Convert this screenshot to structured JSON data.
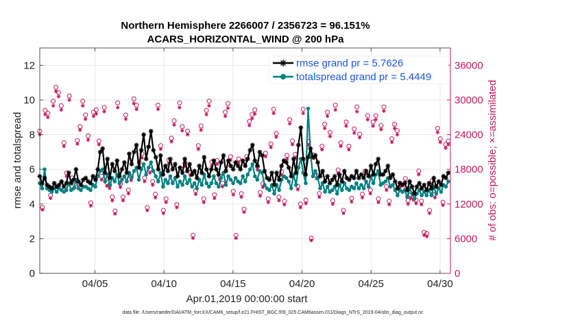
{
  "chart_data": {
    "type": "line",
    "title_line1": "Northern Hemisphere 2266007 / 2356723 = 96.151%",
    "title_line2": "ACARS_HORIZONTAL_WIND @ 200 hPa",
    "xlabel": "Apr.01,2019 00:00:00 start",
    "ylabel": "rmse and totalspread",
    "ylabel_right": "# of obs: o=possible; ×=assimilated",
    "footnote": "data file: /Users/raeder/DAI/ATM_forcXX/CAM6_setup/f.e21.FHIST_BGC.f09_025.CAM6assim.011/Diags_NTrS_2019-04/obs_diag_output.nc",
    "xlim": [
      1,
      30.75
    ],
    "ylim": [
      0,
      13
    ],
    "ylim_right": [
      0,
      39000
    ],
    "x_ticks": [
      5,
      10,
      15,
      20,
      25,
      30
    ],
    "x_tick_labels": [
      "04/05",
      "04/10",
      "04/15",
      "04/20",
      "04/25",
      "04/30"
    ],
    "y_ticks": [
      0,
      2,
      4,
      6,
      8,
      10,
      12
    ],
    "y_tick_labels": [
      "0",
      "2",
      "4",
      "6",
      "8",
      "10",
      "12"
    ],
    "y_right_ticks": [
      0,
      6000,
      12000,
      18000,
      24000,
      30000,
      36000
    ],
    "y_right_tick_labels": [
      "0",
      "6000",
      "12000",
      "18000",
      "24000",
      "30000",
      "36000"
    ],
    "grid": true,
    "legend_position": "top-right",
    "series": [
      {
        "name": "rmse",
        "legend": "rmse grand pr = 5.7626",
        "color": "#000000",
        "marker": "star",
        "values": [
          5.6,
          5.2,
          5.5,
          5.1,
          5.0,
          4.9,
          5.2,
          5.0,
          5.1,
          5.3,
          5.0,
          5.2,
          5.8,
          5.2,
          5.4,
          6.0,
          5.3,
          5.1,
          5.4,
          5.5,
          5.3,
          5.2,
          5.6,
          5.4,
          6.0,
          7.0,
          7.2,
          5.8,
          6.6,
          5.5,
          6.3,
          5.9,
          6.5,
          5.6,
          6.0,
          6.4,
          5.8,
          6.9,
          6.3,
          7.0,
          7.4,
          6.1,
          7.1,
          8.0,
          6.6,
          7.3,
          8.2,
          7.1,
          6.7,
          6.0,
          6.8,
          5.7,
          6.2,
          5.9,
          6.6,
          6.0,
          6.3,
          5.6,
          6.1,
          5.8,
          6.6,
          5.9,
          6.3,
          5.7,
          5.9,
          5.5,
          6.2,
          5.8,
          6.7,
          6.0,
          5.6,
          6.0,
          6.5,
          6.0,
          5.7,
          6.4,
          6.8,
          5.9,
          6.5,
          6.2,
          6.0,
          6.4,
          6.2,
          6.0,
          6.5,
          6.2,
          6.6,
          7.1,
          7.4,
          6.5,
          6.2,
          7.0,
          6.8,
          5.9,
          5.5,
          5.4,
          5.8,
          5.1,
          5.8,
          5.4,
          6.2,
          6.5,
          6.4,
          6.1,
          5.6,
          6.6,
          5.8,
          7.4,
          8.4,
          6.6,
          5.7,
          6.7,
          7.2,
          6.7,
          6.8,
          6.4,
          5.6,
          5.9,
          5.3,
          5.6,
          5.2,
          5.4,
          5.6,
          5.1,
          5.7,
          5.3,
          5.9,
          5.5,
          5.4,
          5.6,
          5.5,
          5.9,
          5.5,
          5.7,
          5.5,
          5.9,
          5.6,
          6.2,
          5.7,
          6.3,
          6.6,
          5.7,
          5.7,
          5.9,
          6.2,
          5.5,
          5.7,
          5.3,
          4.9,
          5.2,
          5.1,
          5.2,
          4.8,
          5.3,
          5.0,
          4.6,
          5.0,
          5.2,
          4.9,
          5.1,
          4.8,
          5.2,
          4.9,
          5.5,
          5.0,
          5.3,
          5.1,
          5.6,
          5.5,
          5.8
        ]
      },
      {
        "name": "totalspread",
        "legend": "totalspread grand pr = 5.4449",
        "color": "#008080",
        "marker": "circle",
        "values": [
          5.2,
          4.9,
          6.0,
          4.9,
          4.8,
          4.7,
          4.9,
          4.7,
          4.9,
          4.8,
          4.7,
          4.8,
          5.2,
          4.8,
          4.9,
          5.4,
          4.9,
          4.8,
          5.0,
          5.0,
          4.9,
          4.8,
          5.1,
          5.0,
          5.6,
          5.9,
          6.0,
          5.3,
          5.7,
          5.1,
          5.5,
          5.3,
          5.7,
          5.2,
          5.4,
          5.6,
          5.3,
          5.8,
          5.5,
          5.9,
          6.1,
          5.4,
          6.0,
          6.3,
          5.7,
          6.1,
          6.4,
          5.9,
          5.6,
          5.3,
          5.8,
          5.0,
          5.4,
          5.2,
          5.6,
          5.2,
          5.5,
          5.0,
          5.3,
          5.1,
          5.6,
          5.2,
          5.4,
          5.0,
          5.2,
          4.9,
          5.4,
          5.1,
          5.7,
          5.2,
          5.0,
          5.2,
          5.6,
          5.2,
          5.0,
          5.5,
          5.8,
          5.1,
          5.6,
          5.4,
          5.2,
          5.5,
          5.3,
          5.2,
          5.6,
          5.3,
          5.7,
          6.0,
          6.3,
          5.6,
          5.4,
          5.9,
          5.8,
          5.1,
          4.9,
          4.8,
          5.1,
          4.6,
          5.1,
          4.8,
          5.4,
          5.6,
          5.5,
          5.3,
          4.9,
          5.7,
          5.1,
          6.1,
          6.6,
          5.8,
          5.2,
          9.5,
          6.9,
          5.6,
          5.9,
          5.5,
          4.9,
          5.2,
          4.7,
          5.0,
          4.7,
          4.8,
          5.0,
          4.6,
          5.1,
          4.8,
          5.2,
          4.9,
          4.8,
          5.0,
          4.9,
          5.2,
          4.9,
          5.1,
          4.9,
          5.3,
          5.0,
          5.6,
          5.2,
          5.7,
          5.9,
          5.1,
          5.2,
          5.3,
          5.5,
          5.0,
          5.1,
          4.8,
          4.5,
          4.8,
          4.7,
          4.8,
          4.4,
          4.9,
          4.6,
          4.3,
          4.6,
          4.8,
          4.5,
          4.7,
          4.5,
          4.8,
          4.5,
          5.0,
          4.6,
          4.9,
          4.7,
          5.1,
          5.0,
          5.3
        ]
      }
    ],
    "obs_possible": [
      24600,
      11400,
      28200,
      27700,
      13500,
      29800,
      32200,
      31300,
      29000,
      22600,
      17400,
      30700,
      16500,
      15400,
      23000,
      25400,
      29800,
      27400,
      23800,
      12200,
      27900,
      28300,
      22900,
      16800,
      28700,
      15700,
      15300,
      13200,
      10800,
      29500,
      15500,
      13200,
      27400,
      14400,
      16800,
      30200,
      29100,
      19200,
      20700,
      16500,
      11400,
      18000,
      15900,
      13700,
      29100,
      22100,
      10900,
      12900,
      19600,
      23400,
      26400,
      11900,
      29500,
      25400,
      19100,
      24600,
      17500,
      6600,
      14300,
      22100,
      25500,
      12900,
      28200,
      29800,
      19300,
      13600,
      19500,
      16800,
      15600,
      27900,
      29400,
      20200,
      14200,
      6600,
      19800,
      13800,
      11100,
      20200,
      26300,
      27500,
      28300,
      18500,
      14000,
      15500,
      20800,
      12900,
      22400,
      28400,
      24200,
      13200,
      17600,
      12500,
      20400,
      26600,
      22900,
      20600,
      15100,
      12000,
      28400,
      12700,
      22800,
      6100,
      20500,
      17000,
      13800,
      22000,
      25800,
      27900,
      24400,
      12600,
      29100,
      17900,
      22600,
      10900,
      26200,
      22000,
      13000,
      25000,
      28800,
      24100,
      13700,
      17700,
      27300,
      14400,
      26200,
      27300,
      12900,
      25600,
      28800,
      15000,
      12500,
      23300,
      25800,
      24700,
      15600,
      14700,
      16400,
      12600,
      13600,
      13300,
      12700,
      17700,
      12500,
      7100,
      6900,
      10900,
      16000,
      13700,
      25100,
      23300,
      12300,
      22300,
      22900
    ],
    "obs_assimilated": [
      24000,
      11000,
      27500,
      27000,
      13000,
      29000,
      31500,
      30600,
      28300,
      22000,
      16800,
      30000,
      16000,
      14800,
      22400,
      24800,
      29000,
      26700,
      23100,
      11700,
      27200,
      27600,
      22300,
      16200,
      28000,
      15100,
      14700,
      12600,
      10300,
      28700,
      14900,
      12600,
      26700,
      13800,
      16100,
      29400,
      28400,
      18600,
      20000,
      15900,
      10900,
      17400,
      15300,
      13100,
      28400,
      21500,
      10400,
      12300,
      19000,
      22800,
      25700,
      11400,
      28700,
      24700,
      18500,
      24000,
      16900,
      6100,
      13700,
      21500,
      24800,
      12300,
      27500,
      29000,
      18600,
      13000,
      18900,
      16200,
      15000,
      27200,
      28600,
      19600,
      13600,
      6100,
      19200,
      13200,
      10600,
      19600,
      25600,
      26800,
      27600,
      17900,
      13400,
      14900,
      20200,
      12300,
      21800,
      27700,
      23600,
      12600,
      17000,
      11900,
      19800,
      25900,
      22300,
      20000,
      14500,
      11400,
      27700,
      12100,
      22200,
      5700,
      19900,
      16400,
      13200,
      21400,
      25100,
      27200,
      23700,
      12000,
      28300,
      17300,
      22000,
      10400,
      25500,
      21400,
      12400,
      24300,
      28000,
      23500,
      13100,
      17100,
      26600,
      13800,
      25500,
      26600,
      12300,
      24900,
      28100,
      14400,
      11900,
      22700,
      25100,
      24000,
      15000,
      14100,
      15800,
      12000,
      13000,
      12700,
      12100,
      17100,
      11900,
      6600,
      6400,
      10400,
      15400,
      13100,
      24400,
      22700,
      11800,
      21700,
      22300
    ]
  }
}
